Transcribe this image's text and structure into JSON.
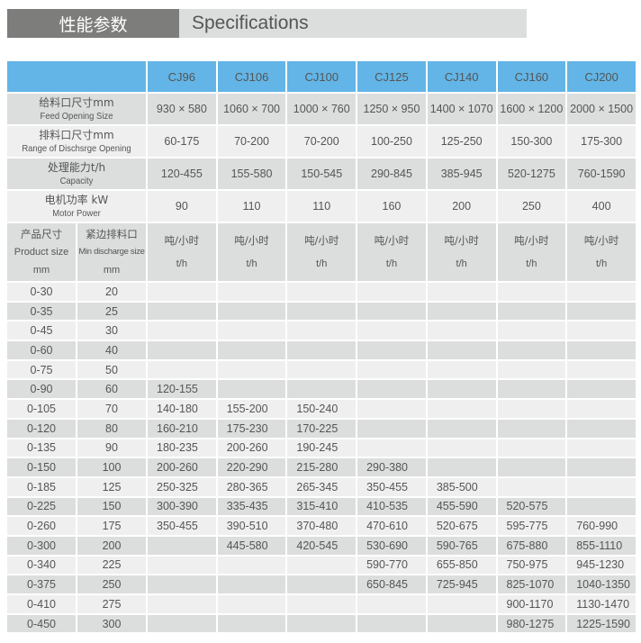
{
  "title": {
    "cn": "性能参数",
    "en": "Specifications"
  },
  "models": [
    "CJ96",
    "CJ106",
    "CJ100",
    "CJ125",
    "CJ140",
    "CJ160",
    "CJ200"
  ],
  "specs": [
    {
      "cn": "给料口尺寸mm",
      "en": "Feed Opening Size",
      "values": [
        "930 × 580",
        "1060 × 700",
        "1000 × 760",
        "1250 × 950",
        "1400 × 1070",
        "1600 × 1200",
        "2000 × 1500"
      ]
    },
    {
      "cn": "排料口尺寸mm",
      "en": "Range of Dischsrge Opening",
      "values": [
        "60-175",
        "70-200",
        "70-200",
        "100-250",
        "125-250",
        "150-300",
        "175-300"
      ]
    },
    {
      "cn": "处理能力t/h",
      "en": "Capacity",
      "values": [
        "120-455",
        "155-580",
        "150-545",
        "290-845",
        "385-945",
        "520-1275",
        "760-1590"
      ]
    },
    {
      "cn": "电机功率 kW",
      "en": "Motor Power",
      "values": [
        "90",
        "110",
        "110",
        "160",
        "200",
        "250",
        "400"
      ]
    }
  ],
  "subheader": {
    "product_cn": "产品尺寸",
    "product_en": "Product size",
    "product_unit": "mm",
    "discharge_cn": "紧边排料口",
    "discharge_en": "Min discharge size",
    "discharge_unit": "mm",
    "unit_cn": "吨/小时",
    "unit_en": "t/h"
  },
  "rows": [
    {
      "product": "0-30",
      "discharge": "20",
      "values": [
        "",
        "",
        "",
        "",
        "",
        "",
        ""
      ]
    },
    {
      "product": "0-35",
      "discharge": "25",
      "values": [
        "",
        "",
        "",
        "",
        "",
        "",
        ""
      ]
    },
    {
      "product": "0-45",
      "discharge": "30",
      "values": [
        "",
        "",
        "",
        "",
        "",
        "",
        ""
      ]
    },
    {
      "product": "0-60",
      "discharge": "40",
      "values": [
        "",
        "",
        "",
        "",
        "",
        "",
        ""
      ]
    },
    {
      "product": "0-75",
      "discharge": "50",
      "values": [
        "",
        "",
        "",
        "",
        "",
        "",
        ""
      ]
    },
    {
      "product": "0-90",
      "discharge": "60",
      "values": [
        "120-155",
        "",
        "",
        "",
        "",
        "",
        ""
      ]
    },
    {
      "product": "0-105",
      "discharge": "70",
      "values": [
        "140-180",
        "155-200",
        "150-240",
        "",
        "",
        "",
        ""
      ]
    },
    {
      "product": "0-120",
      "discharge": "80",
      "values": [
        "160-210",
        "175-230",
        "170-225",
        "",
        "",
        "",
        ""
      ]
    },
    {
      "product": "0-135",
      "discharge": "90",
      "values": [
        "180-235",
        "200-260",
        "190-245",
        "",
        "",
        "",
        ""
      ]
    },
    {
      "product": "0-150",
      "discharge": "100",
      "values": [
        "200-260",
        "220-290",
        "215-280",
        "290-380",
        "",
        "",
        ""
      ]
    },
    {
      "product": "0-185",
      "discharge": "125",
      "values": [
        "250-325",
        "280-365",
        "265-345",
        "350-455",
        "385-500",
        "",
        ""
      ]
    },
    {
      "product": "0-225",
      "discharge": "150",
      "values": [
        "300-390",
        "335-435",
        "315-410",
        "410-535",
        "455-590",
        "520-575",
        ""
      ]
    },
    {
      "product": "0-260",
      "discharge": "175",
      "values": [
        "350-455",
        "390-510",
        "370-480",
        "470-610",
        "520-675",
        "595-775",
        "760-990"
      ]
    },
    {
      "product": "0-300",
      "discharge": "200",
      "values": [
        "",
        "445-580",
        "420-545",
        "530-690",
        "590-765",
        "675-880",
        "855-1110"
      ]
    },
    {
      "product": "0-340",
      "discharge": "225",
      "values": [
        "",
        "",
        "",
        "590-770",
        "655-850",
        "750-975",
        "945-1230"
      ]
    },
    {
      "product": "0-375",
      "discharge": "250",
      "values": [
        "",
        "",
        "",
        "650-845",
        "725-945",
        "825-1070",
        "1040-1350"
      ]
    },
    {
      "product": "0-410",
      "discharge": "275",
      "values": [
        "",
        "",
        "",
        "",
        "",
        "900-1170",
        "1130-1470"
      ]
    },
    {
      "product": "0-450",
      "discharge": "300",
      "values": [
        "",
        "",
        "",
        "",
        "",
        "980-1275",
        "1225-1590"
      ]
    }
  ],
  "colors": {
    "header_blue": "#62b5e6",
    "title_dark": "#7d7e7c",
    "row_gray": "#dcdddd",
    "row_light": "#efefef"
  }
}
